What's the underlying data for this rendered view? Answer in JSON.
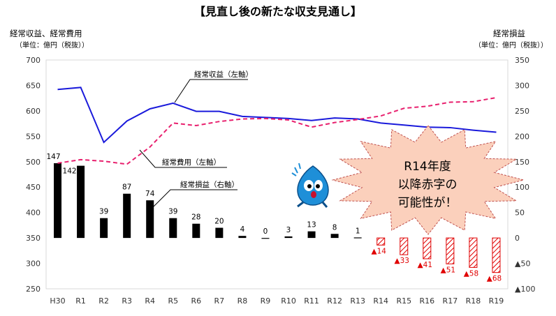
{
  "chart_data": {
    "type": "bar+line",
    "title": "【見直し後の新たな収支見通し】",
    "left_axis": {
      "label": "経常収益、経常費用",
      "unit": "（単位：億円（税抜））",
      "ylim": [
        250,
        700
      ],
      "ticks": [
        "250",
        "300",
        "350",
        "400",
        "450",
        "500",
        "550",
        "600",
        "650",
        "700"
      ]
    },
    "right_axis": {
      "label": "経常損益",
      "unit": "（単位：億円（税抜））",
      "ylim": [
        -100,
        350
      ],
      "ticks": [
        {
          "v": -100,
          "label": "▲100"
        },
        {
          "v": -50,
          "label": "▲50"
        },
        {
          "v": 0,
          "label": "0"
        },
        {
          "v": 50,
          "label": "50"
        },
        {
          "v": 100,
          "label": "100"
        },
        {
          "v": 150,
          "label": "150"
        },
        {
          "v": 200,
          "label": "200"
        },
        {
          "v": 250,
          "label": "250"
        },
        {
          "v": 300,
          "label": "300"
        },
        {
          "v": 350,
          "label": "350"
        }
      ]
    },
    "categories": [
      "H30",
      "R1",
      "R2",
      "R3",
      "R4",
      "R5",
      "R6",
      "R7",
      "R8",
      "R9",
      "R10",
      "R11",
      "R12",
      "R13",
      "R14",
      "R15",
      "R16",
      "R17",
      "R18",
      "R19"
    ],
    "series": [
      {
        "name": "経常収益（左軸）",
        "axis": "left",
        "style": "line",
        "color": "#1a1adb",
        "values": [
          642,
          646,
          538,
          580,
          604,
          615,
          599,
          599,
          589,
          587,
          585,
          581,
          586,
          584,
          576,
          572,
          568,
          567,
          562,
          558
        ]
      },
      {
        "name": "経常費用（左軸）",
        "axis": "left",
        "style": "dashed",
        "color": "#e8206e",
        "values": [
          497,
          504,
          501,
          495,
          529,
          576,
          571,
          579,
          584,
          585,
          582,
          568,
          577,
          583,
          590,
          605,
          609,
          617,
          618,
          626
        ]
      },
      {
        "name": "経常損益（右軸）",
        "axis": "right",
        "style": "bar",
        "values": [
          147,
          142,
          39,
          87,
          74,
          39,
          28,
          20,
          4,
          0,
          3,
          13,
          8,
          1,
          -14,
          -33,
          -41,
          -51,
          -58,
          -68
        ],
        "labels": [
          "147",
          "142",
          "39",
          "87",
          "74",
          "39",
          "28",
          "20",
          "4",
          "0",
          "3",
          "13",
          "8",
          "1",
          "▲14",
          "▲33",
          "▲41",
          "▲51",
          "▲58",
          "▲68"
        ]
      }
    ],
    "annotation": {
      "lines": [
        "R14年度",
        "以降赤字の",
        "可能性が！"
      ],
      "color": "#e00000",
      "fill": "#fbd0bc"
    },
    "colors": {
      "positive_bar": "#000000",
      "negative_bar": "#e00000",
      "negative_label": "#e00000",
      "axis_text": "#333333"
    }
  }
}
